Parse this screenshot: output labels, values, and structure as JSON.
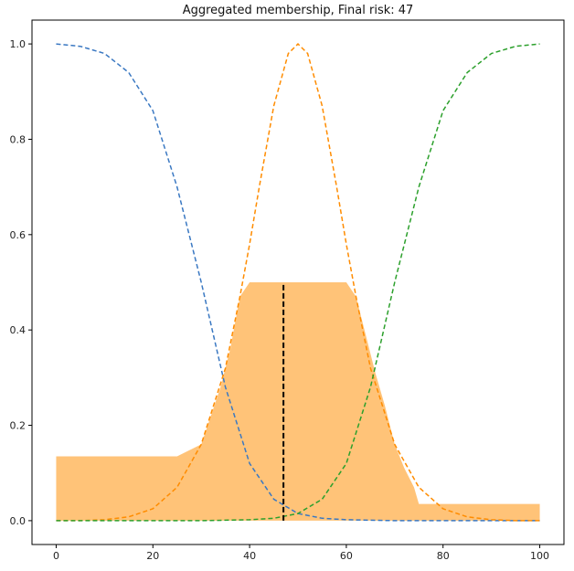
{
  "chart_data": {
    "type": "line",
    "title": "Aggregated membership, Final risk: 47",
    "xlabel": "",
    "ylabel": "",
    "xlim": [
      -5,
      105
    ],
    "ylim": [
      -0.05,
      1.05
    ],
    "x_ticks": [
      0,
      20,
      40,
      60,
      80,
      100
    ],
    "x_tick_labels": [
      "0",
      "20",
      "40",
      "60",
      "80",
      "100"
    ],
    "y_ticks": [
      0.0,
      0.2,
      0.4,
      0.6,
      0.8,
      1.0
    ],
    "y_tick_labels": [
      "0.0",
      "0.2",
      "0.4",
      "0.6",
      "0.8",
      "1.0"
    ],
    "grid": false,
    "legend": "none",
    "series": [
      {
        "kind": "dashed-line",
        "color": "#3a78c2",
        "x": [
          0,
          5,
          10,
          15,
          20,
          25,
          30,
          35,
          40,
          45,
          50,
          55,
          60,
          65,
          70,
          75,
          80,
          85,
          90,
          95,
          100
        ],
        "y": [
          1.0,
          0.995,
          0.98,
          0.94,
          0.86,
          0.7,
          0.5,
          0.28,
          0.12,
          0.045,
          0.015,
          0.005,
          0.002,
          0.001,
          0.0,
          0.0,
          0.0,
          0.0,
          0.0,
          0.0,
          0.0
        ]
      },
      {
        "kind": "dashed-line",
        "color": "#ff8c00",
        "x": [
          0,
          5,
          10,
          15,
          20,
          25,
          30,
          35,
          38,
          40,
          42,
          45,
          48,
          50,
          52,
          55,
          58,
          60,
          62,
          65,
          70,
          75,
          80,
          85,
          90,
          95,
          100
        ],
        "y": [
          0.0,
          0.0,
          0.002,
          0.008,
          0.025,
          0.07,
          0.16,
          0.32,
          0.47,
          0.58,
          0.7,
          0.87,
          0.98,
          1.0,
          0.98,
          0.87,
          0.7,
          0.58,
          0.47,
          0.32,
          0.16,
          0.07,
          0.025,
          0.008,
          0.002,
          0.0,
          0.0
        ]
      },
      {
        "kind": "dashed-line",
        "color": "#2ca02c",
        "x": [
          0,
          5,
          10,
          15,
          20,
          25,
          30,
          35,
          40,
          45,
          50,
          55,
          60,
          65,
          70,
          75,
          80,
          85,
          90,
          95,
          100
        ],
        "y": [
          0.0,
          0.0,
          0.0,
          0.0,
          0.0,
          0.0,
          0.0,
          0.001,
          0.002,
          0.005,
          0.015,
          0.045,
          0.12,
          0.28,
          0.5,
          0.7,
          0.86,
          0.94,
          0.98,
          0.995,
          1.0
        ]
      }
    ],
    "aggregated_area": {
      "color": "#ffc378",
      "x": [
        0,
        5,
        10,
        15,
        20,
        25,
        30,
        32,
        34,
        36,
        38,
        40,
        45,
        50,
        55,
        60,
        62,
        64,
        66,
        68,
        70,
        72,
        74,
        75,
        80,
        85,
        90,
        95,
        100
      ],
      "y": [
        0.135,
        0.135,
        0.135,
        0.135,
        0.135,
        0.135,
        0.16,
        0.22,
        0.28,
        0.36,
        0.47,
        0.5,
        0.5,
        0.5,
        0.5,
        0.5,
        0.47,
        0.39,
        0.31,
        0.24,
        0.16,
        0.11,
        0.07,
        0.035,
        0.035,
        0.035,
        0.035,
        0.035,
        0.035
      ]
    },
    "result_line": {
      "color": "#000000",
      "x": 47,
      "y0": 0.0,
      "y1": 0.5
    }
  }
}
